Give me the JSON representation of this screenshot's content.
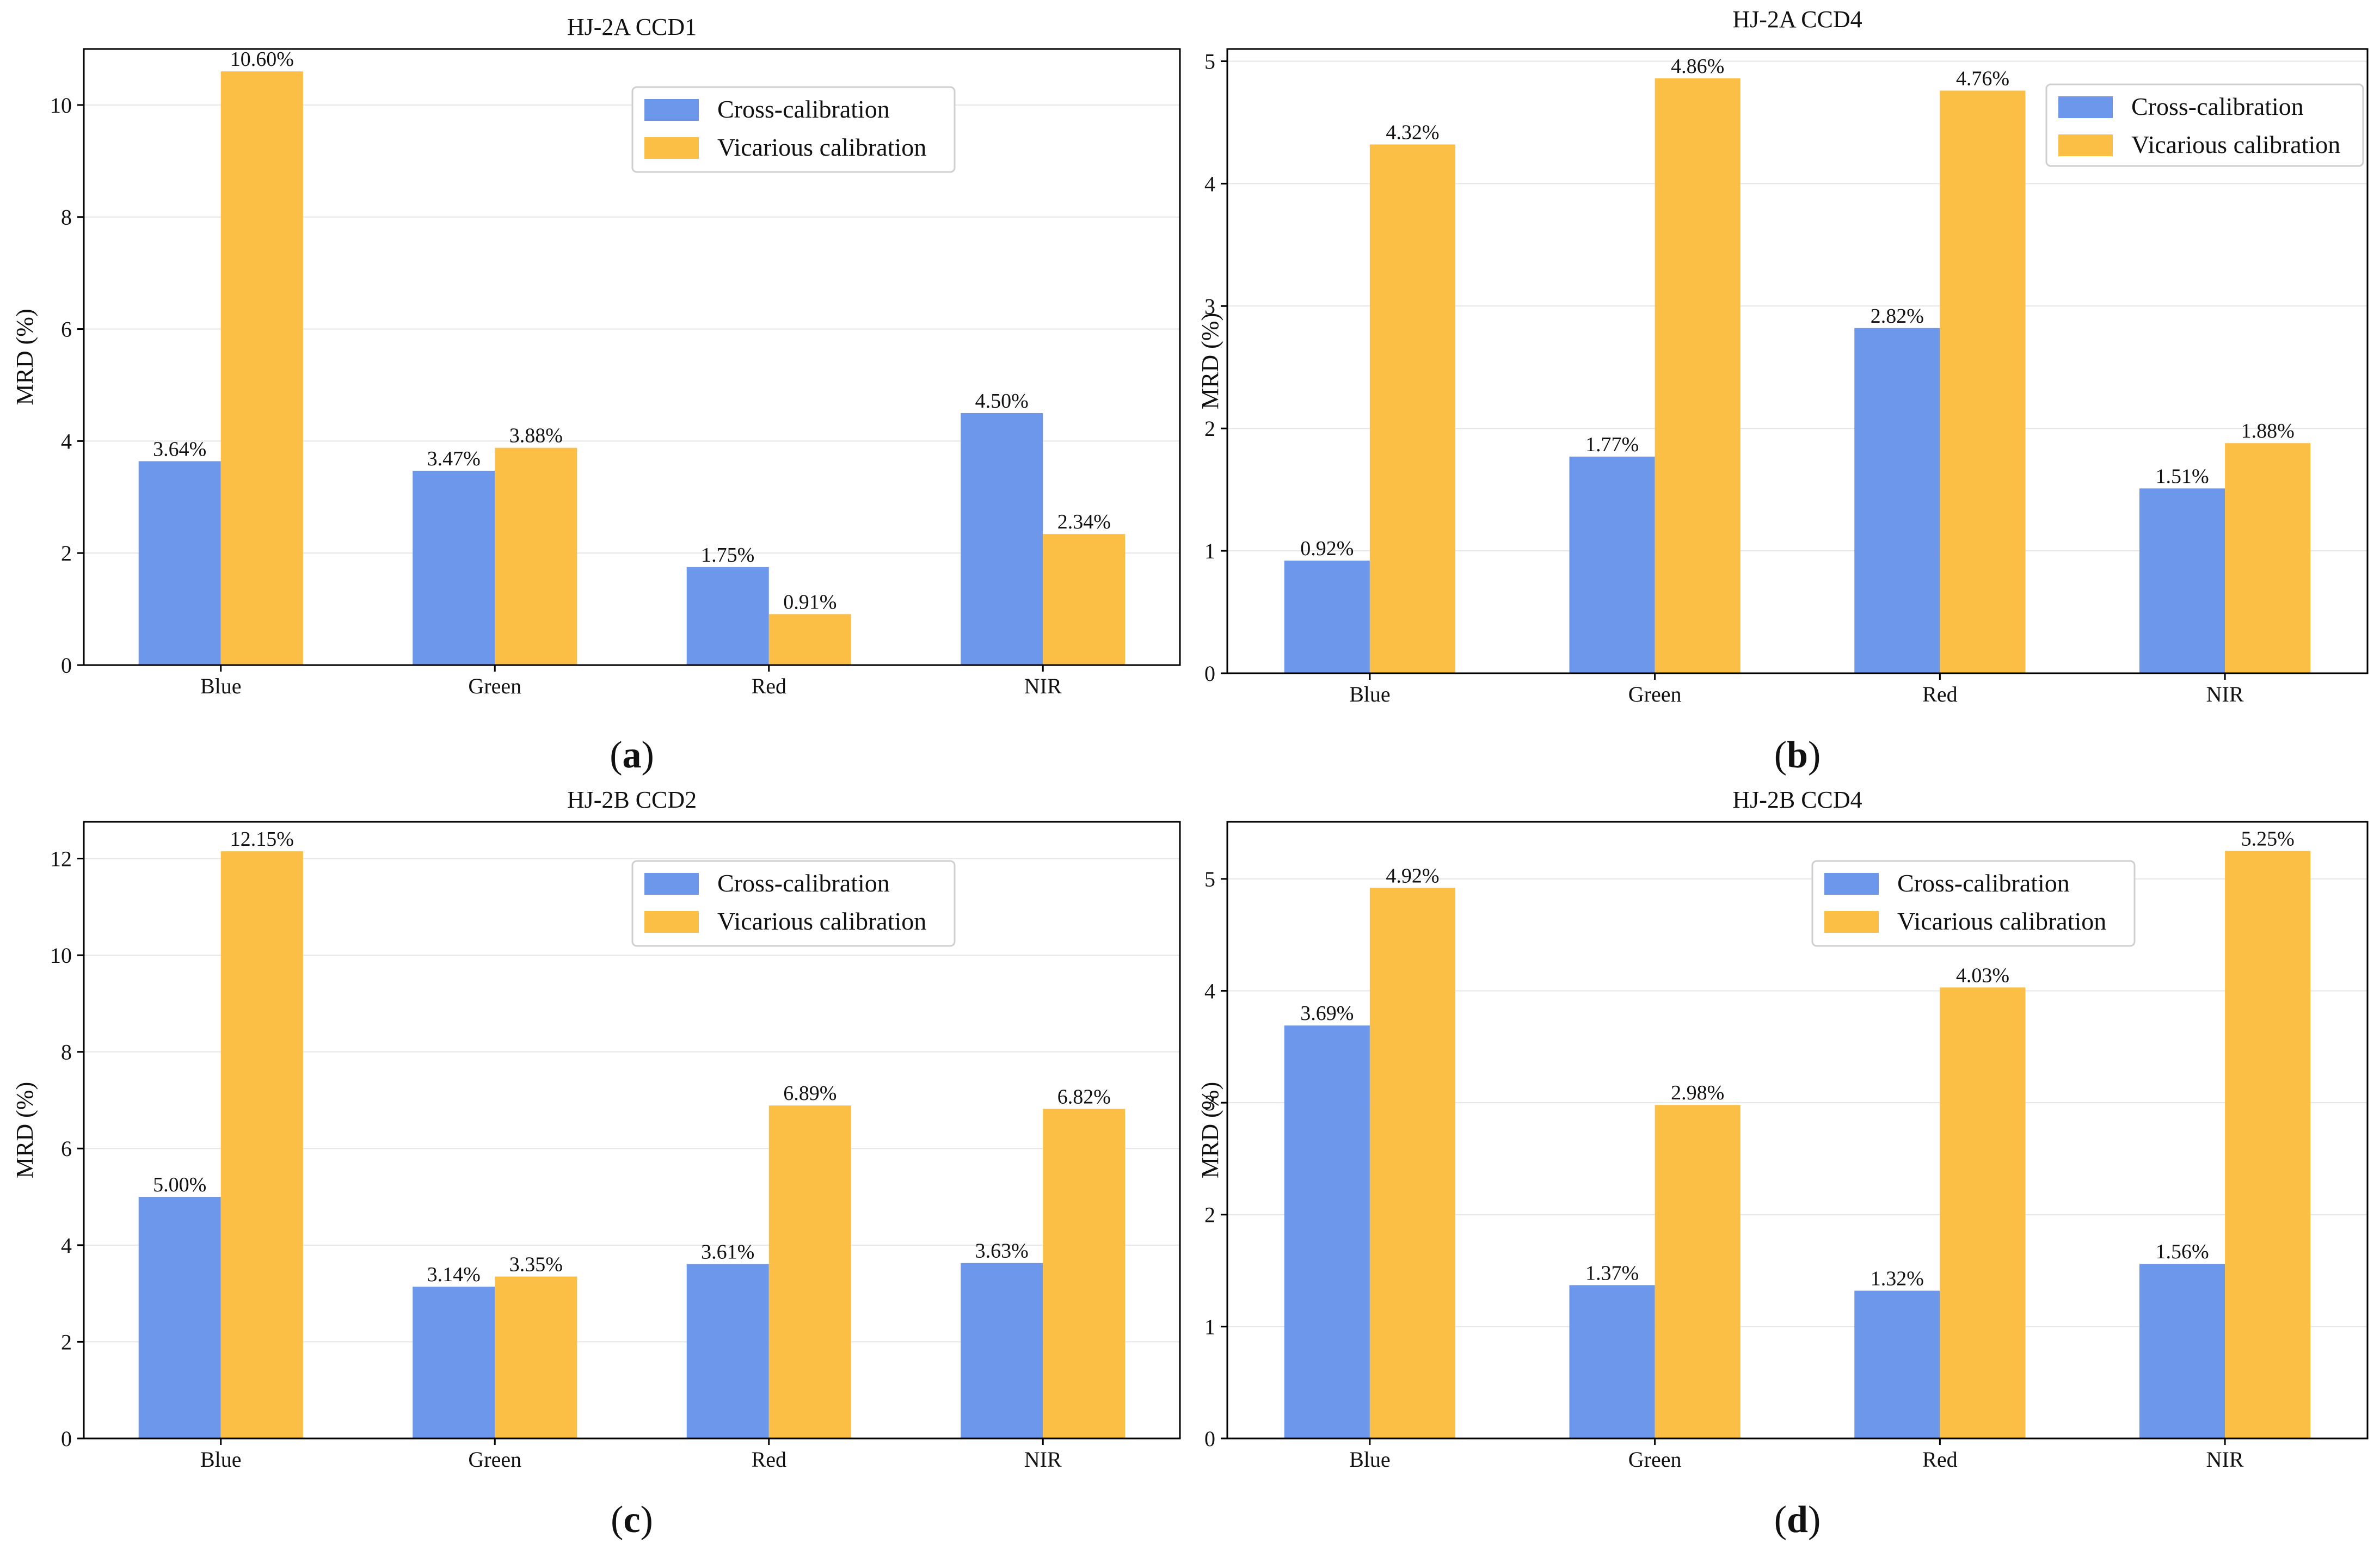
{
  "colors": {
    "cross": "#6d97eb",
    "vicarious": "#fcbf46"
  },
  "legend": {
    "cross": "Cross-calibration",
    "vicarious": "Vicarious calibration"
  },
  "chart_data": [
    {
      "type": "bar",
      "title": "HJ-2A CCD1",
      "panel": "a",
      "ylabel": "MRD (%)",
      "xlabel": "",
      "categories": [
        "Blue",
        "Green",
        "Red",
        "NIR"
      ],
      "ylim": [
        0,
        11
      ],
      "yticks": [
        0,
        2,
        4,
        6,
        8,
        10
      ],
      "grid": true,
      "legend_position": "top-right",
      "series": [
        {
          "name": "Cross-calibration",
          "values": [
            3.64,
            3.47,
            1.75,
            4.5
          ],
          "labels": [
            "3.64%",
            "3.47%",
            "1.75%",
            "4.50%"
          ]
        },
        {
          "name": "Vicarious calibration",
          "values": [
            10.6,
            3.88,
            0.91,
            2.34
          ],
          "labels": [
            "10.60%",
            "3.88%",
            "0.91%",
            "2.34%"
          ]
        }
      ]
    },
    {
      "type": "bar",
      "title": "HJ-2A CCD4",
      "panel": "b",
      "ylabel": "MRD (%)",
      "xlabel": "",
      "categories": [
        "Blue",
        "Green",
        "Red",
        "NIR"
      ],
      "ylim": [
        0,
        5.1
      ],
      "yticks": [
        0,
        1,
        2,
        3,
        4,
        5
      ],
      "grid": true,
      "legend_position": "top-right",
      "series": [
        {
          "name": "Cross-calibration",
          "values": [
            0.92,
            1.77,
            2.82,
            1.51
          ],
          "labels": [
            "0.92%",
            "1.77%",
            "2.82%",
            "1.51%"
          ]
        },
        {
          "name": "Vicarious calibration",
          "values": [
            4.32,
            4.86,
            4.76,
            1.88
          ],
          "labels": [
            "4.32%",
            "4.86%",
            "4.76%",
            "1.88%"
          ]
        }
      ]
    },
    {
      "type": "bar",
      "title": "HJ-2B CCD2",
      "panel": "c",
      "ylabel": "MRD (%)",
      "xlabel": "",
      "categories": [
        "Blue",
        "Green",
        "Red",
        "NIR"
      ],
      "ylim": [
        0,
        12.76
      ],
      "yticks": [
        0,
        2,
        4,
        6,
        8,
        10,
        12
      ],
      "grid": true,
      "legend_position": "top-right",
      "series": [
        {
          "name": "Cross-calibration",
          "values": [
            5.0,
            3.14,
            3.61,
            3.63
          ],
          "labels": [
            "5.00%",
            "3.14%",
            "3.61%",
            "3.63%"
          ]
        },
        {
          "name": "Vicarious calibration",
          "values": [
            12.15,
            3.35,
            6.89,
            6.82
          ],
          "labels": [
            "12.15%",
            "3.35%",
            "6.89%",
            "6.82%"
          ]
        }
      ]
    },
    {
      "type": "bar",
      "title": "HJ-2B CCD4",
      "panel": "d",
      "ylabel": "MRD (%)",
      "xlabel": "",
      "categories": [
        "Blue",
        "Green",
        "Red",
        "NIR"
      ],
      "ylim": [
        0,
        5.51
      ],
      "yticks": [
        0,
        1,
        2,
        3,
        4,
        5
      ],
      "grid": true,
      "legend_position": "top-center",
      "series": [
        {
          "name": "Cross-calibration",
          "values": [
            3.69,
            1.37,
            1.32,
            1.56
          ],
          "labels": [
            "3.69%",
            "1.37%",
            "1.32%",
            "1.56%"
          ]
        },
        {
          "name": "Vicarious calibration",
          "values": [
            4.92,
            2.98,
            4.03,
            5.25
          ],
          "labels": [
            "4.92%",
            "2.98%",
            "4.03%",
            "5.25%"
          ]
        }
      ]
    }
  ]
}
